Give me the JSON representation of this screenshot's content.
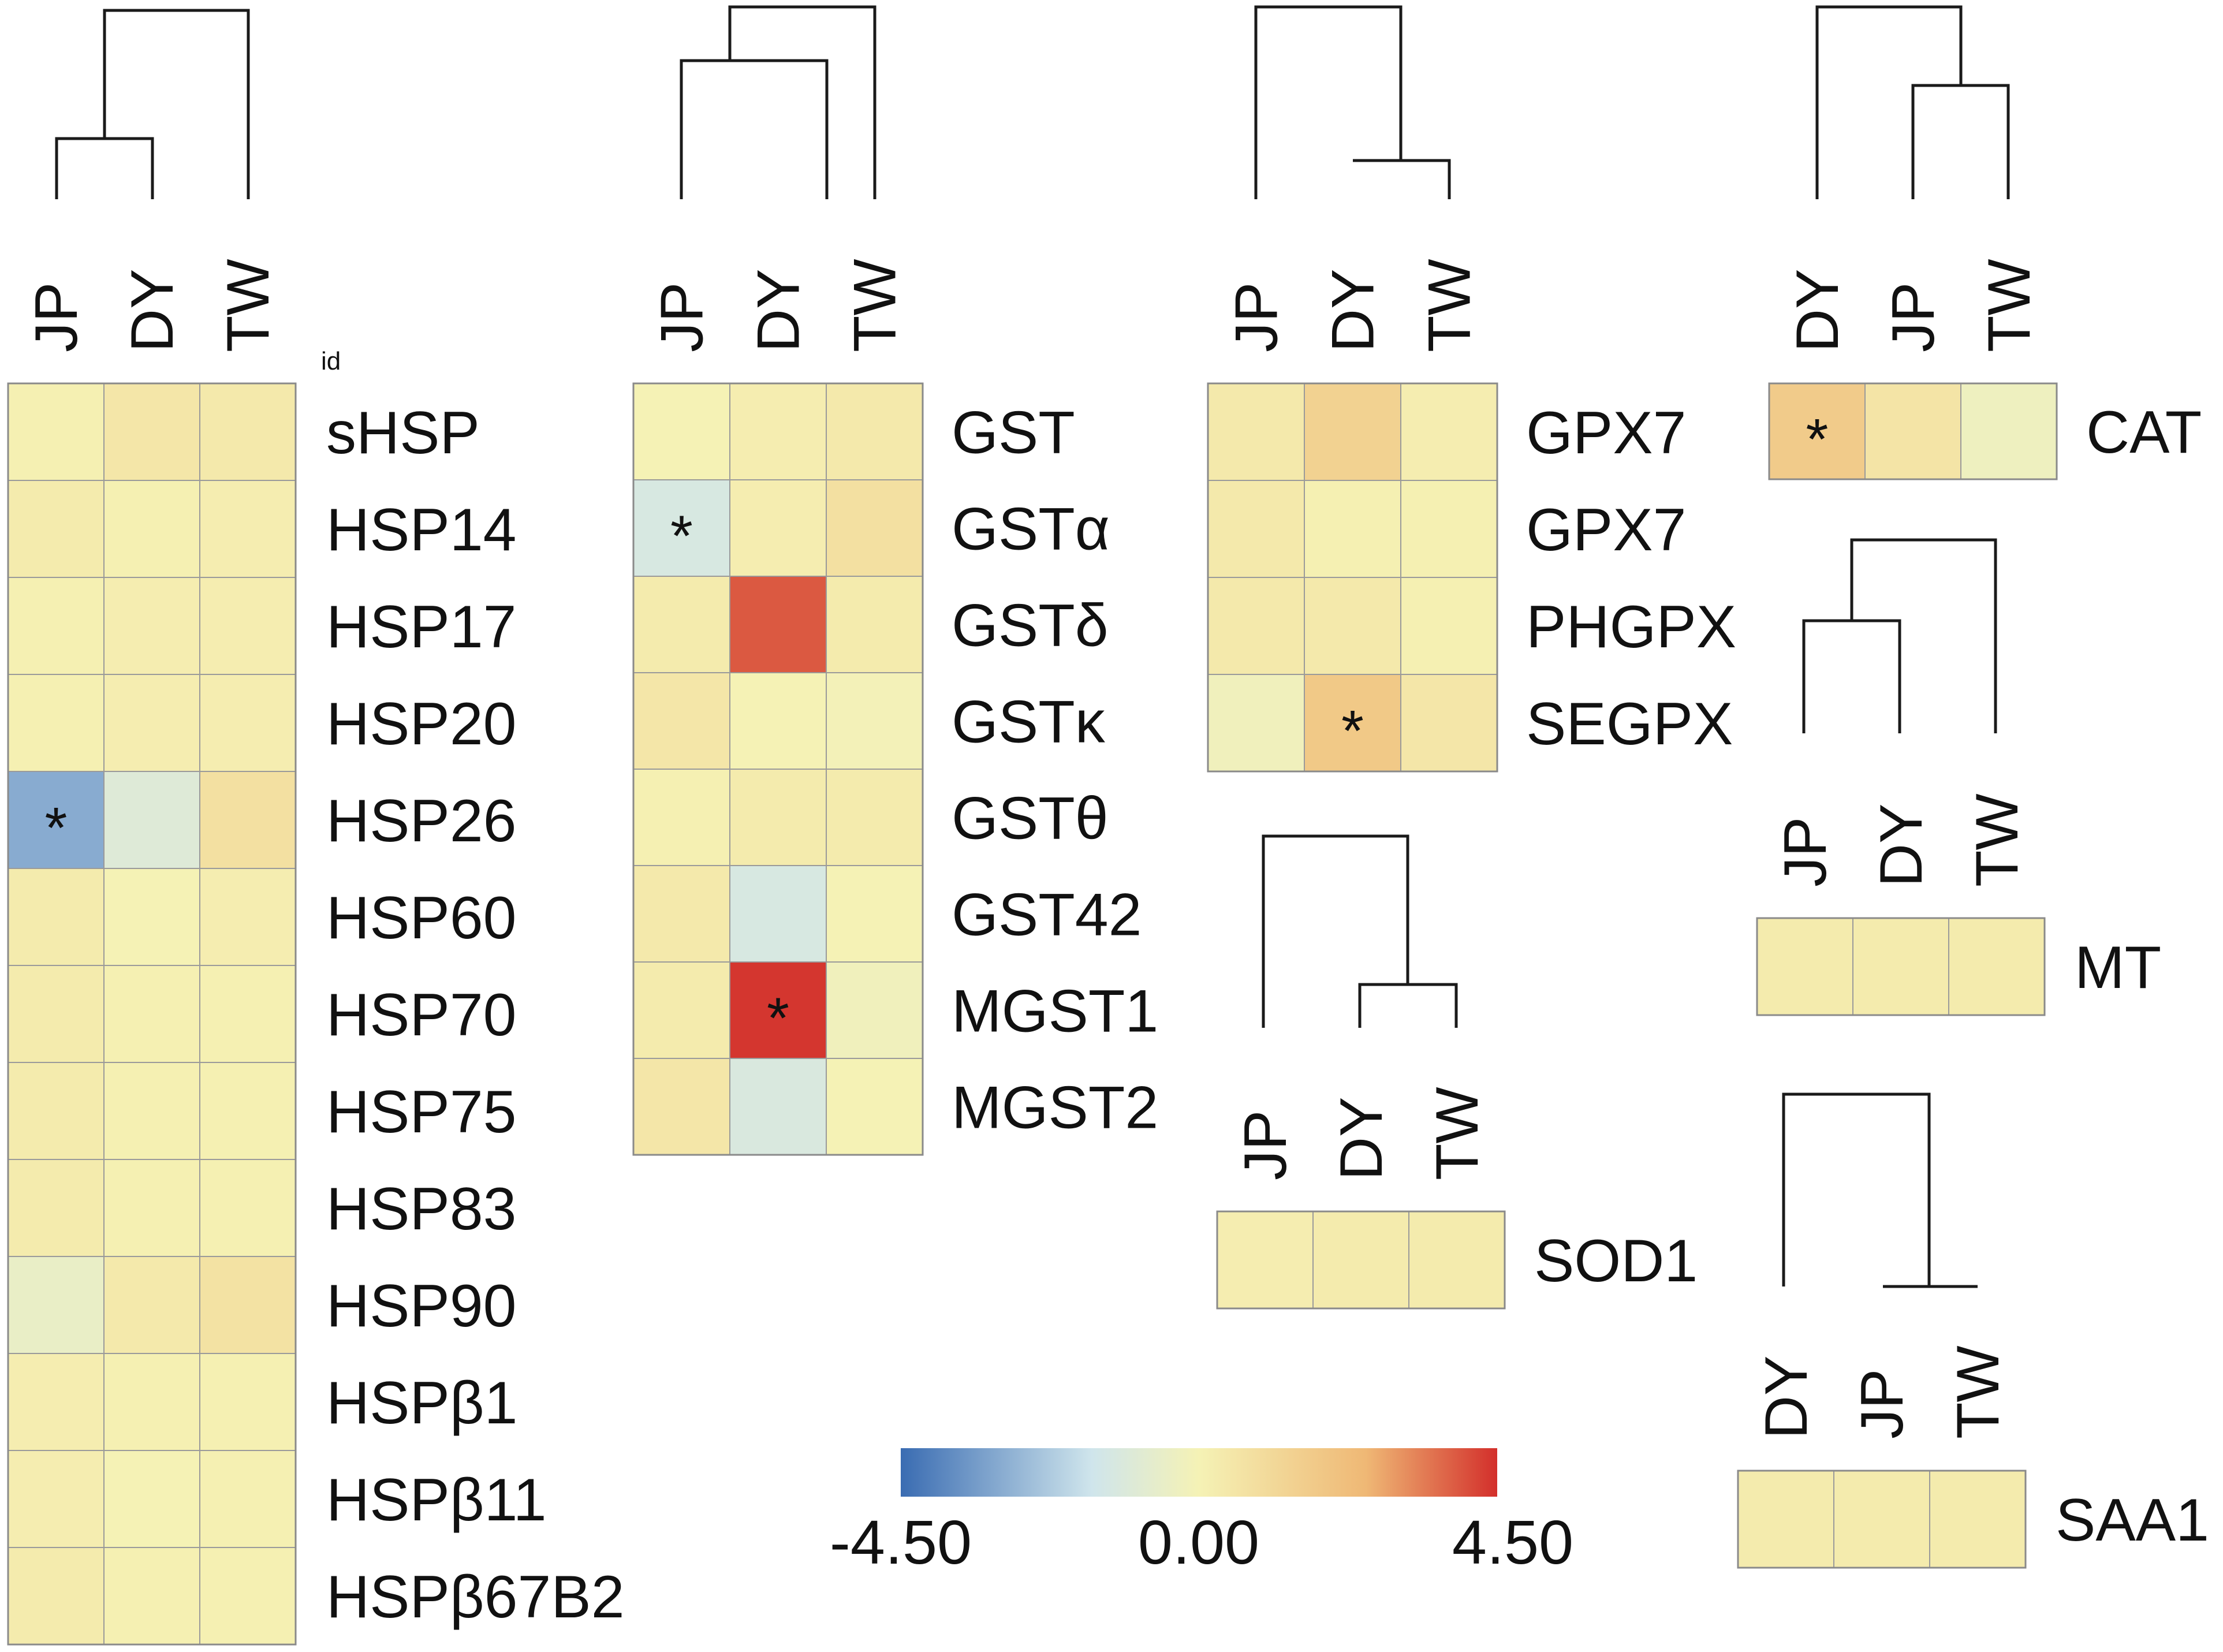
{
  "chart_data": {
    "type": "heatmap",
    "colorbar": {
      "min": -4.5,
      "max": 4.5,
      "tick_labels": [
        "-4.50",
        "0.00",
        "4.50"
      ],
      "colors": [
        "#3a6cb2",
        "#cfe5ec",
        "#f5f2b5",
        "#efb875",
        "#d32f2b"
      ]
    },
    "id_label": "id",
    "panels": [
      {
        "columns": [
          "JP",
          "DY",
          "TW"
        ],
        "rows": [
          "sHSP",
          "HSP14",
          "HSP17",
          "HSP20",
          "HSP26",
          "HSP60",
          "HSP70",
          "HSP75",
          "HSP83",
          "HSP90",
          "HSPβ1",
          "HSPβ11",
          "HSPβ67B2"
        ],
        "values": [
          [
            0.1,
            0.5,
            0.4
          ],
          [
            0.3,
            0.1,
            0.2
          ],
          [
            0.1,
            0.2,
            0.2
          ],
          [
            0.1,
            0.2,
            0.2
          ],
          [
            -3.0,
            -1.0,
            0.8
          ],
          [
            0.3,
            0.0,
            0.2
          ],
          [
            0.3,
            0.1,
            0.1
          ],
          [
            0.3,
            0.1,
            0.1
          ],
          [
            0.3,
            0.1,
            0.1
          ],
          [
            -0.5,
            0.4,
            0.7
          ],
          [
            0.2,
            0.1,
            0.1
          ],
          [
            0.2,
            0.0,
            0.1
          ],
          [
            0.3,
            0.1,
            0.1
          ]
        ],
        "significant": [
          [
            4,
            0
          ]
        ]
      },
      {
        "columns": [
          "JP",
          "DY",
          "TW"
        ],
        "rows": [
          "GST",
          "GSTα",
          "GSTδ",
          "GSTκ",
          "GSTθ",
          "GST42",
          "MGST1",
          "MGST2"
        ],
        "values": [
          [
            0.0,
            0.2,
            0.4
          ],
          [
            -1.3,
            0.2,
            0.8
          ],
          [
            0.3,
            3.9,
            0.3
          ],
          [
            0.5,
            0.0,
            -0.1
          ],
          [
            0.1,
            0.3,
            0.3
          ],
          [
            0.4,
            -1.3,
            0.0
          ],
          [
            0.3,
            4.4,
            -0.2
          ],
          [
            0.5,
            -1.2,
            0.0
          ]
        ],
        "significant": [
          [
            1,
            0
          ],
          [
            6,
            1
          ]
        ]
      },
      {
        "columns": [
          "JP",
          "DY",
          "TW"
        ],
        "rows": [
          "GPX7",
          "GPX7",
          "PHGPX",
          "SEGPX"
        ],
        "values": [
          [
            0.4,
            1.4,
            0.2
          ],
          [
            0.4,
            0.1,
            0.1
          ],
          [
            0.4,
            0.4,
            0.1
          ],
          [
            -0.2,
            1.8,
            0.5
          ]
        ],
        "significant": [
          [
            3,
            1
          ]
        ]
      },
      {
        "columns": [
          "DY",
          "JP",
          "TW"
        ],
        "rows": [
          "CAT"
        ],
        "values": [
          [
            1.7,
            0.6,
            -0.3
          ]
        ],
        "significant": [
          [
            0,
            0
          ]
        ]
      },
      {
        "columns": [
          "JP",
          "DY",
          "TW"
        ],
        "rows": [
          "MT"
        ],
        "values": [
          [
            0.3,
            0.3,
            0.3
          ]
        ],
        "significant": []
      },
      {
        "columns": [
          "JP",
          "DY",
          "TW"
        ],
        "rows": [
          "SOD1"
        ],
        "values": [
          [
            0.2,
            0.3,
            0.3
          ]
        ],
        "significant": []
      },
      {
        "columns": [
          "DY",
          "JP",
          "TW"
        ],
        "rows": [
          "SAA1"
        ],
        "values": [
          [
            0.3,
            0.3,
            0.3
          ]
        ],
        "significant": []
      }
    ]
  }
}
